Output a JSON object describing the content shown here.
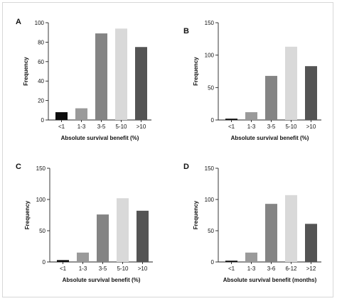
{
  "chart_data": [
    {
      "type": "bar",
      "panel": "A",
      "categories": [
        "<1",
        "1-3",
        "3-5",
        "5-10",
        ">10"
      ],
      "values": [
        8,
        12,
        89,
        94,
        75
      ],
      "bar_colors": [
        "#0d0d0d",
        "#9a9a9a",
        "#848484",
        "#d9d9d9",
        "#545454"
      ],
      "xlabel": "Absolute survival benefit (%)",
      "ylabel": "Frequency",
      "ylim": [
        0,
        100
      ],
      "yticks": [
        0,
        20,
        40,
        60,
        80,
        100
      ]
    },
    {
      "type": "bar",
      "panel": "B",
      "categories": [
        "<1",
        "1-3",
        "3-5",
        "5-10",
        ">10"
      ],
      "values": [
        2,
        12,
        68,
        113,
        83
      ],
      "bar_colors": [
        "#0d0d0d",
        "#9a9a9a",
        "#848484",
        "#d9d9d9",
        "#545454"
      ],
      "xlabel": "Absolute survival benefit (%)",
      "ylabel": "Frequency",
      "ylim": [
        0,
        150
      ],
      "yticks": [
        0,
        50,
        100,
        150
      ]
    },
    {
      "type": "bar",
      "panel": "C",
      "categories": [
        "<1",
        "1-3",
        "3-5",
        "5-10",
        ">10"
      ],
      "values": [
        3,
        15,
        76,
        102,
        82
      ],
      "bar_colors": [
        "#0d0d0d",
        "#9a9a9a",
        "#848484",
        "#d9d9d9",
        "#545454"
      ],
      "xlabel": "Absolute survival benefit (%)",
      "ylabel": "Frequency",
      "ylim": [
        0,
        150
      ],
      "yticks": [
        0,
        50,
        100,
        150
      ]
    },
    {
      "type": "bar",
      "panel": "D",
      "categories": [
        "<1",
        "1-3",
        "3-6",
        "6-12",
        ">12"
      ],
      "values": [
        2,
        15,
        93,
        107,
        61
      ],
      "bar_colors": [
        "#0d0d0d",
        "#9a9a9a",
        "#848484",
        "#d9d9d9",
        "#545454"
      ],
      "xlabel": "Absolute survival benefit (months)",
      "ylabel": "Frequency",
      "ylim": [
        0,
        150
      ],
      "yticks": [
        0,
        50,
        100,
        150
      ]
    }
  ]
}
